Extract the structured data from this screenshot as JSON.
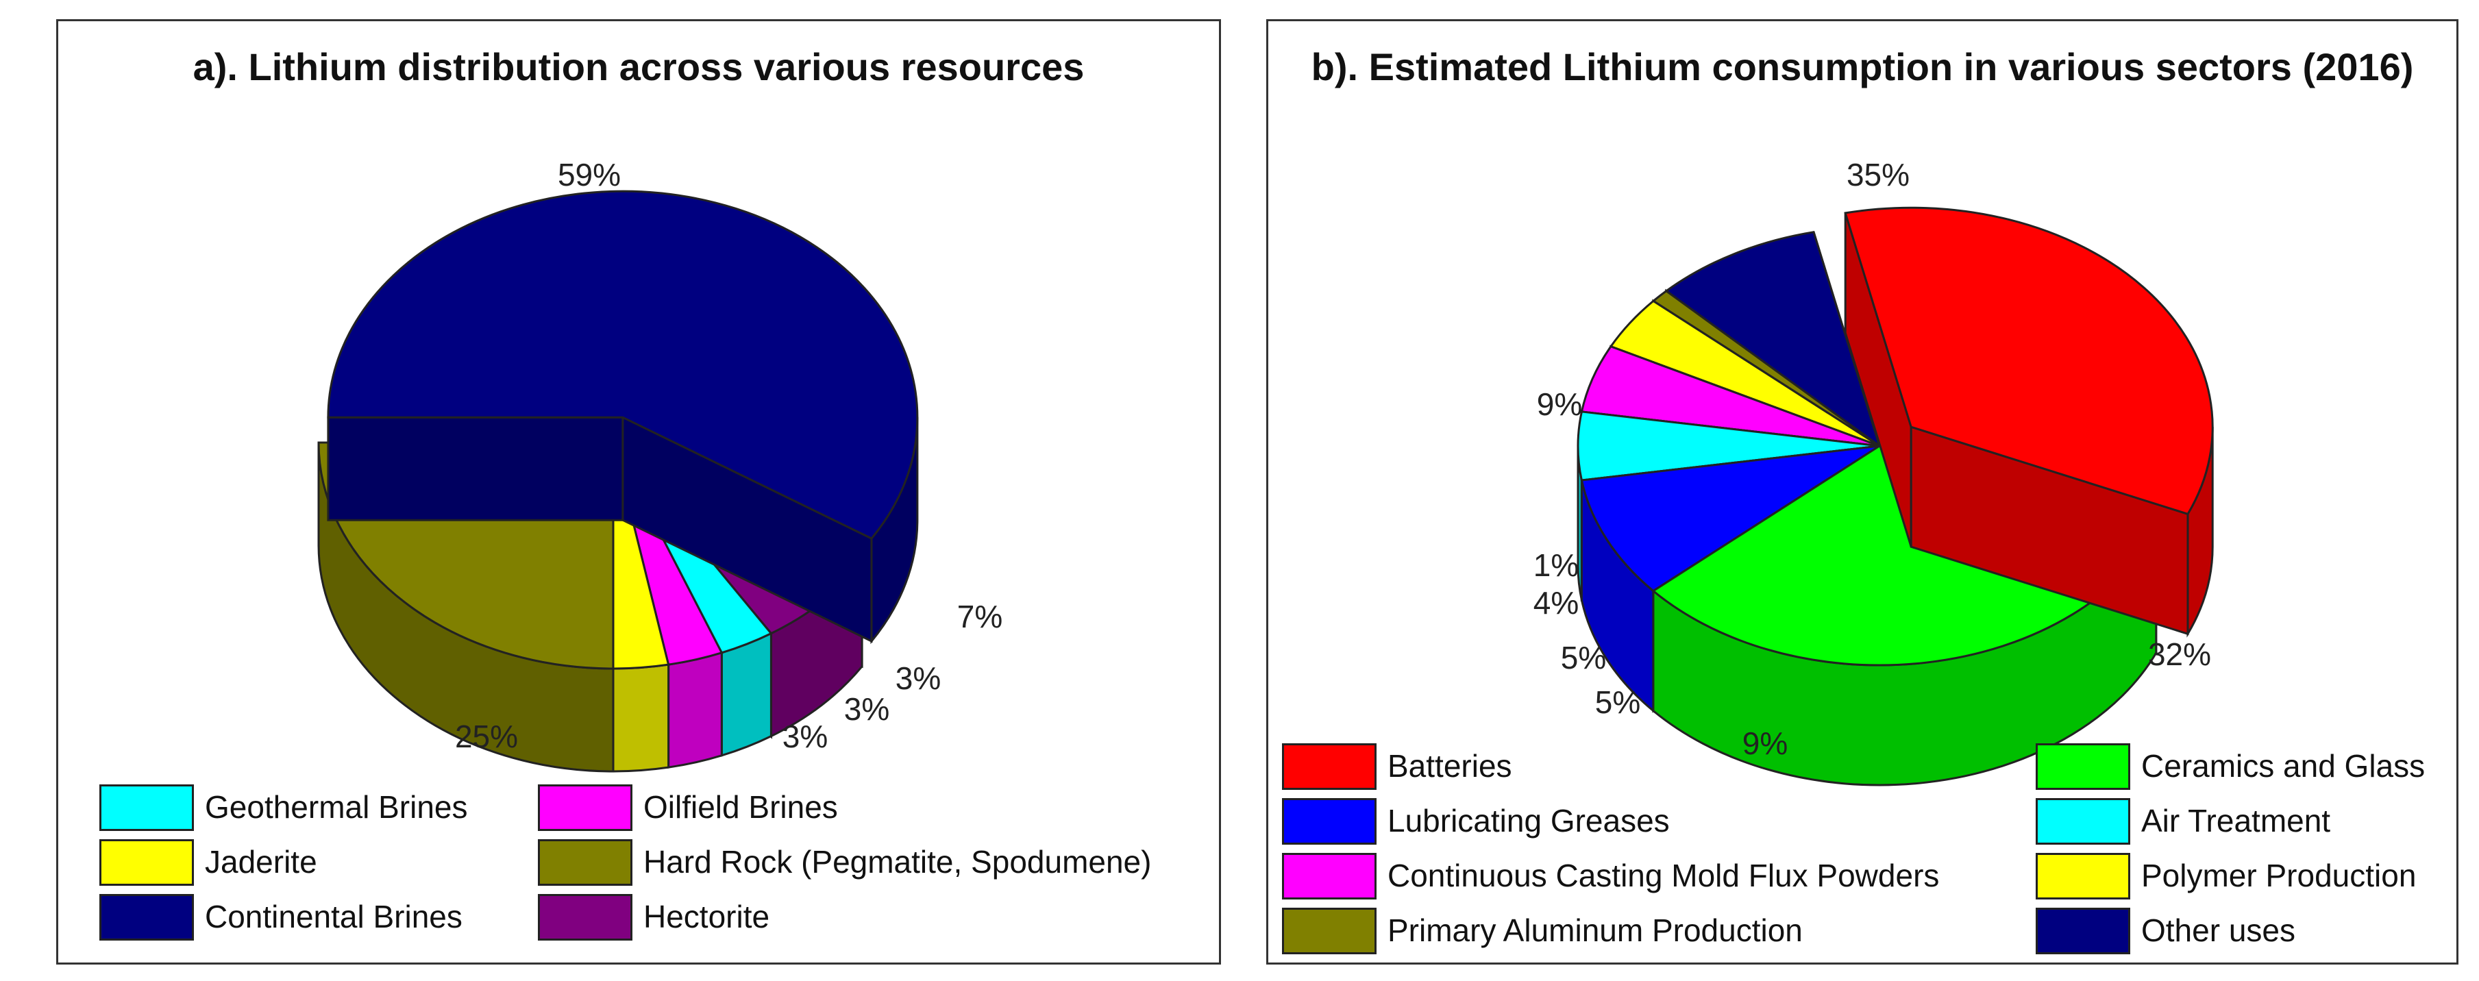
{
  "chart_data": [
    {
      "id": "a",
      "type": "pie",
      "title": "a). Lithium distribution across various resources",
      "slices": [
        {
          "name": "Continental Brines",
          "value": 59,
          "label": "59%",
          "color": "#000080"
        },
        {
          "name": "Hectorite",
          "value": 7,
          "label": "7%",
          "color": "#800080"
        },
        {
          "name": "Geothermal Brines",
          "value": 3,
          "label": "3%",
          "color": "#00FFFF"
        },
        {
          "name": "Oilfield Brines",
          "value": 3,
          "label": "3%",
          "color": "#FF00FF"
        },
        {
          "name": "Jaderite",
          "value": 3,
          "label": "3%",
          "color": "#FFFF00"
        },
        {
          "name": "Hard Rock (Pegmatite, Spodumene)",
          "value": 25,
          "label": "25%",
          "color": "#808000"
        }
      ],
      "legend": [
        {
          "label": "Geothermal Brines",
          "color": "#00FFFF"
        },
        {
          "label": "Oilfield Brines",
          "color": "#FF00FF"
        },
        {
          "label": "Jaderite",
          "color": "#FFFF00"
        },
        {
          "label": "Hard Rock (Pegmatite, Spodumene)",
          "color": "#808000"
        },
        {
          "label": "Continental Brines",
          "color": "#000080"
        },
        {
          "label": "Hectorite",
          "color": "#800080"
        }
      ]
    },
    {
      "id": "b",
      "type": "pie",
      "title": "b). Estimated Lithium consumption in various sectors (2016)",
      "slices": [
        {
          "name": "Batteries",
          "value": 35,
          "label": "35%",
          "color": "#FF0000"
        },
        {
          "name": "Ceramics and Glass",
          "value": 32,
          "label": "32%",
          "color": "#00FF00"
        },
        {
          "name": "Lubricating Greases",
          "value": 9,
          "label": "9%",
          "color": "#0000FF"
        },
        {
          "name": "Air Treatment",
          "value": 5,
          "label": "5%",
          "color": "#00FFFF"
        },
        {
          "name": "Continuous Casting Mold Flux Powders",
          "value": 5,
          "label": "5%",
          "color": "#FF00FF"
        },
        {
          "name": "Polymer Production",
          "value": 4,
          "label": "4%",
          "color": "#FFFF00"
        },
        {
          "name": "Primary Aluminum Production",
          "value": 1,
          "label": "1%",
          "color": "#808000"
        },
        {
          "name": "Other uses",
          "value": 9,
          "label": "9%",
          "color": "#000080"
        }
      ],
      "legend": [
        {
          "label": "Batteries",
          "color": "#FF0000"
        },
        {
          "label": "Ceramics and Glass",
          "color": "#00FF00"
        },
        {
          "label": "Lubricating Greases",
          "color": "#0000FF"
        },
        {
          "label": "Air Treatment",
          "color": "#00FFFF"
        },
        {
          "label": "Continuous Casting Mold Flux Powders",
          "color": "#FF00FF"
        },
        {
          "label": "Polymer Production",
          "color": "#FFFF00"
        },
        {
          "label": "Primary Aluminum Production",
          "color": "#808000"
        },
        {
          "label": "Other uses",
          "color": "#000080"
        }
      ]
    }
  ]
}
